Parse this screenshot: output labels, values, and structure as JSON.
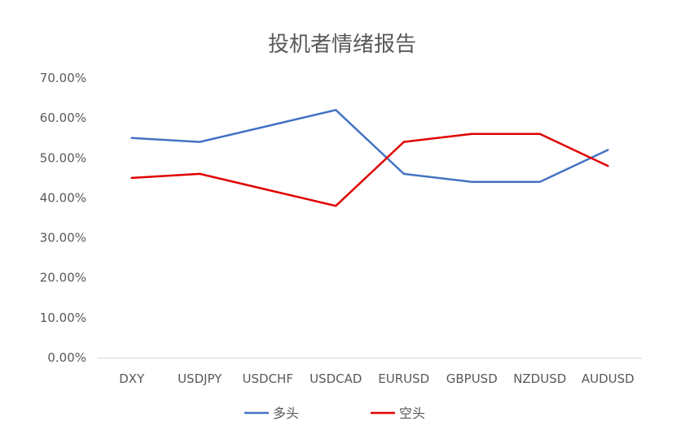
{
  "chart_data": {
    "type": "line",
    "title": "投机者情绪报告",
    "categories": [
      "DXY",
      "USDJPY",
      "USDCHF",
      "USDCAD",
      "EURUSD",
      "GBPUSD",
      "NZDUSD",
      "AUDUSD"
    ],
    "ylim": [
      0,
      0.7
    ],
    "yticks": [
      "0.00%",
      "10.00%",
      "20.00%",
      "30.00%",
      "40.00%",
      "50.00%",
      "60.00%",
      "70.00%"
    ],
    "grid": false,
    "legend": "bottom",
    "series": [
      {
        "name": "多头",
        "color": "#4472C4",
        "values": [
          0.55,
          0.54,
          0.58,
          0.62,
          0.46,
          0.44,
          0.44,
          0.52
        ]
      },
      {
        "name": "空头",
        "color": "#E00000",
        "values": [
          0.45,
          0.46,
          0.42,
          0.38,
          0.54,
          0.56,
          0.56,
          0.48
        ]
      }
    ]
  }
}
